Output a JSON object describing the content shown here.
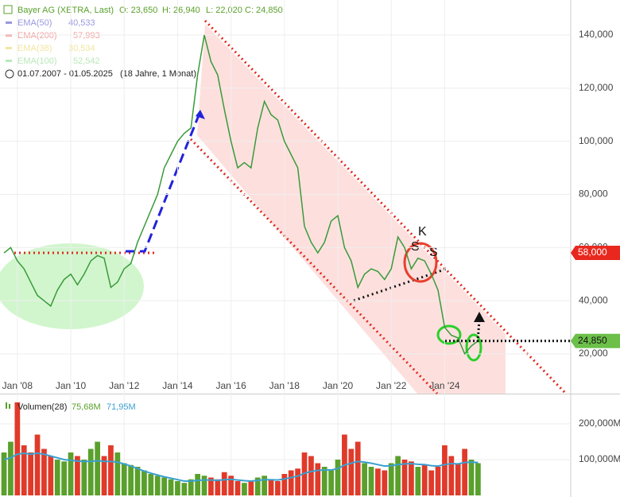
{
  "header": {
    "title": "Bayer AG (XETRA, Last)",
    "open": "O: 23,650",
    "high": "H: 26,940",
    "low": "L: 22,020",
    "close": "C: 24,850",
    "legend": [
      {
        "name": "EMA(50)",
        "value": "40,533",
        "color": "#9999e0"
      },
      {
        "name": "EMA(200)",
        "value": "57,993",
        "color": "#f4a0a0"
      },
      {
        "name": "EMA(38)",
        "value": "30,534",
        "color": "#f2e6a0"
      },
      {
        "name": "EMA(100)",
        "value": "52,542",
        "color": "#b8e8b8"
      }
    ],
    "period": "01.07.2007 - 01.05.2025",
    "span": "(18 Jahre, 1 Monat)"
  },
  "chart_data": [
    {
      "type": "line",
      "x": [
        2007.5,
        2007.75,
        2008,
        2008.25,
        2008.5,
        2008.75,
        2009,
        2009.25,
        2009.5,
        2009.75,
        2010,
        2010.25,
        2010.5,
        2010.75,
        2011,
        2011.25,
        2011.5,
        2011.75,
        2012,
        2012.25,
        2012.5,
        2012.75,
        2013,
        2013.25,
        2013.5,
        2013.75,
        2014,
        2014.25,
        2014.5,
        2014.75,
        2015,
        2015.25,
        2015.5,
        2015.75,
        2016,
        2016.25,
        2016.5,
        2016.75,
        2017,
        2017.25,
        2017.5,
        2017.75,
        2018,
        2018.25,
        2018.5,
        2018.75,
        2019,
        2019.25,
        2019.5,
        2019.75,
        2020,
        2020.25,
        2020.5,
        2020.75,
        2021,
        2021.25,
        2021.5,
        2021.75,
        2022,
        2022.25,
        2022.5,
        2022.75,
        2023,
        2023.25,
        2023.5,
        2023.75,
        2024,
        2024.25,
        2024.5,
        2024.75,
        2025,
        2025.25
      ],
      "series": [
        {
          "name": "Bayer AG",
          "color": "#3a9a3a",
          "values": [
            58,
            60,
            55,
            52,
            47,
            42,
            40,
            38,
            44,
            48,
            50,
            46,
            50,
            55,
            57,
            56,
            45,
            47,
            52,
            54,
            62,
            68,
            74,
            80,
            90,
            95,
            100,
            103,
            105,
            125,
            140,
            130,
            125,
            112,
            100,
            90,
            92,
            90,
            105,
            115,
            110,
            108,
            100,
            95,
            90,
            68,
            62,
            58,
            62,
            70,
            72,
            60,
            55,
            45,
            50,
            52,
            51,
            48,
            52,
            64,
            60,
            52,
            56,
            55,
            50,
            44,
            30,
            27,
            26,
            20,
            23,
            24.85
          ]
        }
      ],
      "xlim": [
        2007.35,
        2028.72
      ],
      "ylim": [
        5.04,
        153.17
      ],
      "xticks": [
        {
          "value": 2008,
          "label": "Jan '08"
        },
        {
          "value": 2010,
          "label": "Jan '10"
        },
        {
          "value": 2012,
          "label": "Jan '12"
        },
        {
          "value": 2014,
          "label": "Jan '14"
        },
        {
          "value": 2016,
          "label": "Jan '16"
        },
        {
          "value": 2018,
          "label": "Jan '18"
        },
        {
          "value": 2020,
          "label": "Jan '20"
        },
        {
          "value": 2022,
          "label": "Jan '22"
        },
        {
          "value": 2024,
          "label": "Jan '24"
        }
      ],
      "yticks": [
        {
          "value": 20,
          "label": "20,000"
        },
        {
          "value": 40,
          "label": "40,000"
        },
        {
          "value": 60,
          "label": "60,000"
        },
        {
          "value": 80,
          "label": "80,000"
        },
        {
          "value": 100,
          "label": "100,000"
        },
        {
          "value": 120,
          "label": "120,000"
        },
        {
          "value": 140,
          "label": "140,000"
        }
      ],
      "tags": [
        {
          "value": 58,
          "label": "58,000",
          "color": "#e8281e"
        },
        {
          "value": 24.85,
          "label": "24,850",
          "color": "#6cc04a"
        }
      ],
      "annotations": [
        "K",
        "S",
        "S"
      ],
      "grid": true
    },
    {
      "type": "bar",
      "title": "Volumen(28)",
      "series": [
        {
          "name": "Volumen",
          "value_label": "75,68M",
          "up_color": "#5aa02c",
          "down_color": "#e03a2a",
          "values": [
            120,
            150,
            260,
            140,
            120,
            170,
            130,
            110,
            100,
            95,
            120,
            110,
            100,
            130,
            150,
            110,
            140,
            120,
            90,
            85,
            80,
            70,
            60,
            55,
            50,
            45,
            40,
            35,
            45,
            60,
            55,
            50,
            45,
            65,
            55,
            40,
            35,
            40,
            50,
            55,
            45,
            40,
            60,
            70,
            75,
            120,
            110,
            90,
            80,
            70,
            100,
            170,
            130,
            150,
            90,
            80,
            75,
            70,
            90,
            110,
            100,
            95,
            80,
            85,
            70,
            80,
            140,
            110,
            90,
            130,
            100,
            90
          ]
        },
        {
          "value_label": "71,95M",
          "color": "#3aa0d0",
          "values": [
            100,
            105,
            115,
            118,
            115,
            118,
            115,
            110,
            105,
            100,
            98,
            96,
            95,
            95,
            97,
            95,
            95,
            93,
            88,
            82,
            75,
            68,
            62,
            57,
            52,
            48,
            44,
            40,
            40,
            42,
            43,
            43,
            42,
            44,
            45,
            43,
            41,
            40,
            42,
            44,
            44,
            43,
            46,
            50,
            54,
            62,
            67,
            70,
            71,
            71,
            75,
            85,
            90,
            95,
            93,
            90,
            86,
            82,
            83,
            86,
            88,
            89,
            87,
            86,
            83,
            82,
            86,
            89,
            88,
            92,
            93,
            92
          ]
        }
      ],
      "ylim": [
        0,
        280
      ],
      "yticks": [
        {
          "value": 100,
          "label": "100,000M"
        },
        {
          "value": 200,
          "label": "200,000M"
        }
      ]
    }
  ]
}
